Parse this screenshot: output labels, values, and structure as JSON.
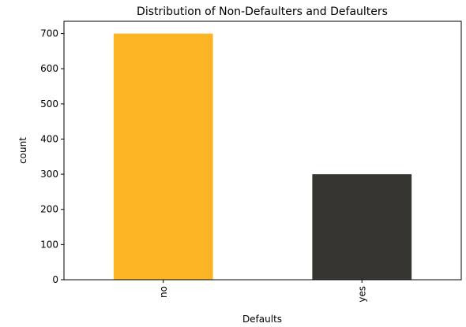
{
  "chart_data": {
    "type": "bar",
    "title": "Distribution of Non-Defaulters and Defaulters",
    "xlabel": "Defaults",
    "ylabel": "count",
    "categories": [
      "no",
      "yes"
    ],
    "values": [
      700,
      300
    ],
    "ylim": [
      0,
      735
    ],
    "yticks": [
      0,
      100,
      200,
      300,
      400,
      500,
      600,
      700
    ],
    "bar_colors": [
      "#fbb423",
      "#36352f"
    ],
    "grid": false,
    "legend": "none"
  }
}
